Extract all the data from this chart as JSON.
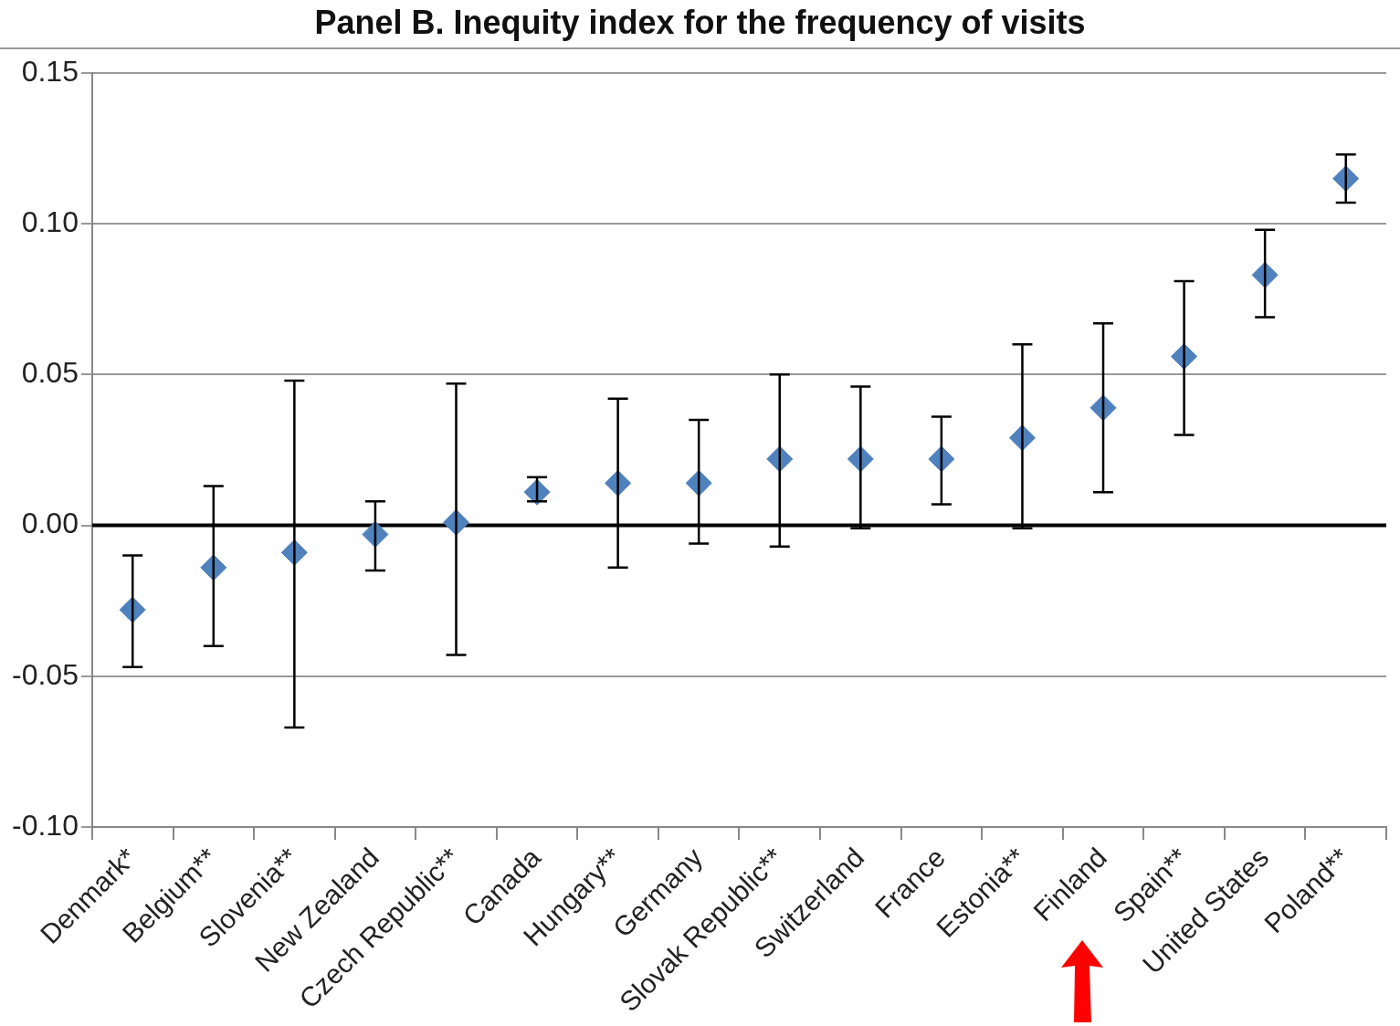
{
  "chart_data": {
    "type": "scatter",
    "title": "Panel B. Inequity index for the frequency of visits",
    "categories": [
      "Denmark*",
      "Belgium**",
      "Slovenia**",
      "New Zealand",
      "Czech Republic**",
      "Canada",
      "Hungary**",
      "Germany",
      "Slovak Republic**",
      "Switzerland",
      "France",
      "Estonia**",
      "Finland",
      "Spain**",
      "United States",
      "Poland**"
    ],
    "series": [
      {
        "color": "#4f81bd",
        "values": [
          -0.028,
          -0.014,
          -0.009,
          -0.003,
          0.001,
          0.011,
          0.014,
          0.014,
          0.022,
          0.022,
          0.022,
          0.029,
          0.039,
          0.056,
          0.083,
          0.115
        ],
        "errors": [
          [
            -0.047,
            -0.01
          ],
          [
            -0.04,
            0.013
          ],
          [
            -0.067,
            0.048
          ],
          [
            -0.015,
            0.008
          ],
          [
            -0.043,
            0.047
          ],
          [
            0.008,
            0.016
          ],
          [
            -0.014,
            0.042
          ],
          [
            -0.006,
            0.035
          ],
          [
            -0.007,
            0.05
          ],
          [
            -0.001,
            0.046
          ],
          [
            0.007,
            0.036
          ],
          [
            -0.001,
            0.06
          ],
          [
            0.011,
            0.067
          ],
          [
            0.03,
            0.081
          ],
          [
            0.069,
            0.098
          ],
          [
            0.107,
            0.123
          ]
        ]
      }
    ],
    "ylim": [
      -0.1,
      0.15
    ],
    "yticks": [
      {
        "value": -0.1,
        "label": "-0.10"
      },
      {
        "value": -0.05,
        "label": "-0.05"
      },
      {
        "value": 0,
        "label": "0.00"
      },
      {
        "value": 0.05,
        "label": "0.05"
      },
      {
        "value": 0.1,
        "label": "0.10"
      },
      {
        "value": 0.15,
        "label": "0.15"
      }
    ],
    "ref_lines": [
      {
        "axis": "y",
        "value": 0,
        "color": "#000000"
      }
    ],
    "grid": "y",
    "legend": false,
    "marker": "diamond"
  }
}
